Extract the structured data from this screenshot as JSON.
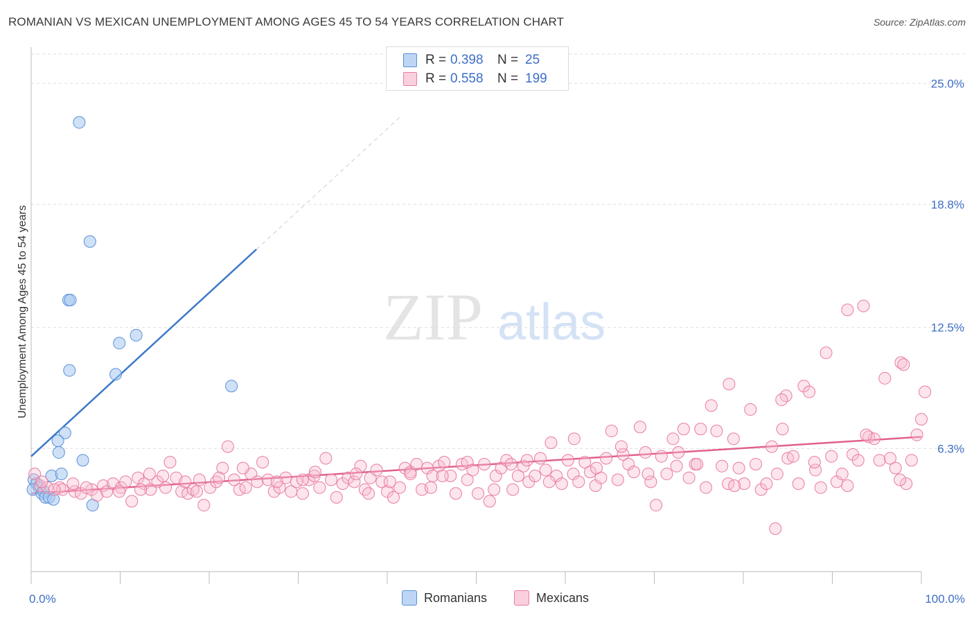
{
  "header": {
    "title": "ROMANIAN VS MEXICAN UNEMPLOYMENT AMONG AGES 45 TO 54 YEARS CORRELATION CHART",
    "source": "Source: ZipAtlas.com"
  },
  "watermark": {
    "part1": "ZIP",
    "part2": "atlas"
  },
  "legend": {
    "rows": [
      {
        "r_label": "R =",
        "r_value": "0.398",
        "n_label": "N =",
        "n_value": "25",
        "color": "#a8c8f0",
        "border": "#5b8fd6"
      },
      {
        "r_label": "R =",
        "r_value": "0.558",
        "n_label": "N =",
        "n_value": "199",
        "color": "#f8bdd0",
        "border": "#e87ba0"
      }
    ]
  },
  "bottom_legend": {
    "items": [
      {
        "label": "Romanians",
        "color": "#a8c8f0",
        "border": "#5b8fd6"
      },
      {
        "label": "Mexicans",
        "color": "#f8bdd0",
        "border": "#e87ba0"
      }
    ]
  },
  "chart_data": {
    "type": "scatter",
    "title": "ROMANIAN VS MEXICAN UNEMPLOYMENT AMONG AGES 45 TO 54 YEARS CORRELATION CHART",
    "xlabel": "",
    "ylabel": "Unemployment Among Ages 45 to 54 years",
    "xlim": [
      0,
      100
    ],
    "ylim": [
      0,
      26.5
    ],
    "x_tick_labels": [
      "0.0%",
      "100.0%"
    ],
    "y_ticks": [
      6.3,
      12.5,
      18.8,
      25.0
    ],
    "y_tick_labels": [
      "6.3%",
      "12.5%",
      "18.8%",
      "25.0%"
    ],
    "grid": true,
    "colors": {
      "romanians": "#5b8fd6",
      "mexicans": "#e87ba0",
      "tick_label": "#3d6fc4"
    },
    "series": [
      {
        "name": "Romanians",
        "trend": {
          "x0": 0,
          "y0": 5.9,
          "x1": 25.3,
          "y1": 16.5,
          "extends_to": [
            41.5,
            23.3
          ]
        },
        "points": [
          [
            5.4,
            23.0
          ],
          [
            6.6,
            16.9
          ],
          [
            4.2,
            13.9
          ],
          [
            4.4,
            13.9
          ],
          [
            11.8,
            12.1
          ],
          [
            9.9,
            11.7
          ],
          [
            4.3,
            10.3
          ],
          [
            9.5,
            10.1
          ],
          [
            22.5,
            9.5
          ],
          [
            3.8,
            7.1
          ],
          [
            3.0,
            6.7
          ],
          [
            3.1,
            6.1
          ],
          [
            5.8,
            5.7
          ],
          [
            2.3,
            4.9
          ],
          [
            3.4,
            5.0
          ],
          [
            0.3,
            4.7
          ],
          [
            0.6,
            4.5
          ],
          [
            0.9,
            4.3
          ],
          [
            0.2,
            4.2
          ],
          [
            1.2,
            4.0
          ],
          [
            1.4,
            4.1
          ],
          [
            1.6,
            3.8
          ],
          [
            2.0,
            3.8
          ],
          [
            2.5,
            3.7
          ],
          [
            6.9,
            3.4
          ]
        ]
      },
      {
        "name": "Mexicans",
        "trend": {
          "x0": 0,
          "y0": 4.0,
          "x1": 100,
          "y1": 6.9
        },
        "points": [
          [
            1.0,
            4.4
          ],
          [
            1.8,
            4.3
          ],
          [
            3.2,
            4.3
          ],
          [
            3.5,
            4.2
          ],
          [
            4.9,
            4.1
          ],
          [
            5.6,
            4.0
          ],
          [
            6.8,
            4.2
          ],
          [
            7.4,
            3.9
          ],
          [
            8.1,
            4.4
          ],
          [
            8.5,
            4.1
          ],
          [
            9.2,
            4.5
          ],
          [
            10.1,
            4.3
          ],
          [
            10.6,
            4.6
          ],
          [
            11.3,
            3.6
          ],
          [
            12.0,
            4.8
          ],
          [
            12.7,
            4.5
          ],
          [
            13.4,
            4.2
          ],
          [
            14.2,
            4.6
          ],
          [
            15.1,
            4.3
          ],
          [
            15.6,
            5.6
          ],
          [
            16.3,
            4.8
          ],
          [
            16.9,
            4.1
          ],
          [
            17.6,
            4.0
          ],
          [
            18.2,
            4.2
          ],
          [
            18.9,
            4.7
          ],
          [
            19.4,
            3.4
          ],
          [
            20.1,
            4.3
          ],
          [
            20.8,
            4.6
          ],
          [
            21.5,
            5.3
          ],
          [
            22.1,
            6.4
          ],
          [
            22.8,
            4.7
          ],
          [
            23.4,
            4.2
          ],
          [
            24.1,
            4.3
          ],
          [
            24.7,
            5.0
          ],
          [
            25.4,
            4.6
          ],
          [
            26.0,
            5.6
          ],
          [
            26.6,
            4.7
          ],
          [
            27.3,
            4.1
          ],
          [
            27.9,
            4.3
          ],
          [
            28.6,
            4.8
          ],
          [
            29.2,
            4.1
          ],
          [
            29.8,
            4.6
          ],
          [
            30.5,
            4.0
          ],
          [
            31.2,
            4.7
          ],
          [
            31.8,
            4.9
          ],
          [
            32.4,
            4.3
          ],
          [
            33.1,
            5.8
          ],
          [
            33.7,
            4.7
          ],
          [
            34.3,
            3.8
          ],
          [
            35.0,
            4.5
          ],
          [
            35.6,
            4.8
          ],
          [
            36.3,
            4.6
          ],
          [
            37.0,
            5.4
          ],
          [
            37.5,
            4.2
          ],
          [
            38.1,
            4.8
          ],
          [
            38.8,
            5.2
          ],
          [
            39.4,
            4.6
          ],
          [
            40.0,
            4.1
          ],
          [
            40.7,
            3.8
          ],
          [
            41.4,
            4.3
          ],
          [
            42.0,
            5.3
          ],
          [
            42.6,
            5.1
          ],
          [
            43.3,
            5.5
          ],
          [
            43.9,
            4.2
          ],
          [
            44.5,
            5.3
          ],
          [
            45.1,
            4.9
          ],
          [
            45.8,
            5.4
          ],
          [
            46.4,
            5.6
          ],
          [
            47.1,
            4.9
          ],
          [
            47.7,
            4.0
          ],
          [
            48.4,
            5.5
          ],
          [
            49.0,
            5.6
          ],
          [
            49.6,
            5.2
          ],
          [
            50.2,
            4.0
          ],
          [
            50.9,
            5.5
          ],
          [
            51.5,
            3.6
          ],
          [
            52.2,
            4.9
          ],
          [
            52.8,
            5.3
          ],
          [
            53.4,
            5.7
          ],
          [
            54.1,
            4.2
          ],
          [
            54.7,
            4.9
          ],
          [
            55.3,
            5.4
          ],
          [
            55.9,
            4.6
          ],
          [
            56.6,
            4.9
          ],
          [
            57.2,
            5.8
          ],
          [
            57.8,
            5.2
          ],
          [
            58.4,
            6.6
          ],
          [
            59.0,
            4.9
          ],
          [
            59.6,
            4.5
          ],
          [
            60.3,
            5.7
          ],
          [
            60.9,
            5.0
          ],
          [
            61.5,
            4.6
          ],
          [
            62.2,
            5.6
          ],
          [
            62.8,
            5.1
          ],
          [
            63.4,
            4.4
          ],
          [
            64.0,
            4.8
          ],
          [
            64.6,
            5.8
          ],
          [
            65.2,
            7.2
          ],
          [
            65.9,
            4.7
          ],
          [
            66.5,
            6.0
          ],
          [
            67.1,
            5.5
          ],
          [
            67.7,
            5.1
          ],
          [
            68.4,
            7.4
          ],
          [
            69.0,
            6.1
          ],
          [
            69.6,
            4.6
          ],
          [
            70.2,
            3.4
          ],
          [
            70.8,
            5.9
          ],
          [
            71.4,
            5.0
          ],
          [
            72.1,
            6.8
          ],
          [
            72.7,
            6.1
          ],
          [
            73.3,
            7.3
          ],
          [
            73.9,
            4.8
          ],
          [
            74.6,
            5.5
          ],
          [
            75.2,
            7.3
          ],
          [
            75.8,
            4.3
          ],
          [
            76.4,
            8.5
          ],
          [
            77.0,
            7.2
          ],
          [
            77.6,
            5.4
          ],
          [
            78.3,
            4.5
          ],
          [
            78.9,
            6.8
          ],
          [
            79.5,
            5.3
          ],
          [
            80.1,
            4.5
          ],
          [
            80.8,
            8.3
          ],
          [
            81.4,
            5.5
          ],
          [
            82.0,
            4.2
          ],
          [
            82.6,
            4.5
          ],
          [
            83.2,
            6.4
          ],
          [
            83.8,
            5.0
          ],
          [
            84.4,
            7.3
          ],
          [
            85.0,
            5.8
          ],
          [
            85.6,
            5.9
          ],
          [
            86.2,
            4.5
          ],
          [
            86.8,
            9.5
          ],
          [
            87.4,
            9.2
          ],
          [
            88.1,
            5.2
          ],
          [
            88.7,
            4.3
          ],
          [
            89.3,
            11.2
          ],
          [
            89.9,
            5.9
          ],
          [
            90.5,
            4.6
          ],
          [
            91.1,
            5.0
          ],
          [
            91.7,
            4.4
          ],
          [
            92.3,
            6.0
          ],
          [
            92.9,
            5.7
          ],
          [
            93.5,
            13.6
          ],
          [
            94.1,
            6.9
          ],
          [
            94.7,
            6.8
          ],
          [
            95.3,
            5.7
          ],
          [
            95.9,
            9.9
          ],
          [
            96.5,
            5.8
          ],
          [
            97.1,
            5.3
          ],
          [
            97.7,
            10.7
          ],
          [
            98.3,
            4.5
          ],
          [
            98.9,
            5.7
          ],
          [
            99.5,
            7.0
          ],
          [
            100.0,
            7.8
          ],
          [
            100.4,
            9.2
          ],
          [
            84.8,
            9.0
          ],
          [
            84.3,
            8.8
          ],
          [
            83.6,
            2.2
          ],
          [
            78.4,
            9.6
          ],
          [
            91.7,
            13.4
          ],
          [
            98.0,
            10.6
          ],
          [
            72.5,
            5.4
          ],
          [
            66.3,
            6.4
          ],
          [
            61.0,
            6.8
          ],
          [
            55.7,
            5.7
          ],
          [
            49.0,
            4.7
          ],
          [
            44.9,
            4.3
          ],
          [
            40.3,
            4.6
          ],
          [
            36.5,
            5.0
          ],
          [
            30.5,
            4.7
          ],
          [
            27.6,
            4.6
          ],
          [
            21.1,
            4.8
          ],
          [
            18.6,
            4.1
          ],
          [
            14.8,
            4.9
          ],
          [
            9.9,
            4.1
          ],
          [
            6.2,
            4.3
          ],
          [
            4.7,
            4.5
          ],
          [
            2.6,
            4.2
          ],
          [
            0.4,
            5.0
          ],
          [
            1.2,
            4.6
          ],
          [
            13.3,
            5.0
          ],
          [
            37.9,
            4.0
          ],
          [
            53.9,
            5.5
          ],
          [
            58.2,
            4.6
          ],
          [
            69.3,
            5.0
          ],
          [
            74.8,
            5.5
          ],
          [
            79.0,
            4.4
          ],
          [
            88.0,
            5.6
          ],
          [
            93.8,
            7.0
          ],
          [
            97.6,
            4.7
          ],
          [
            46.2,
            4.9
          ],
          [
            23.8,
            5.3
          ],
          [
            31.9,
            5.1
          ],
          [
            17.3,
            4.6
          ],
          [
            52.0,
            4.2
          ],
          [
            63.5,
            5.3
          ],
          [
            42.6,
            5.0
          ],
          [
            12.3,
            4.2
          ]
        ]
      }
    ]
  }
}
